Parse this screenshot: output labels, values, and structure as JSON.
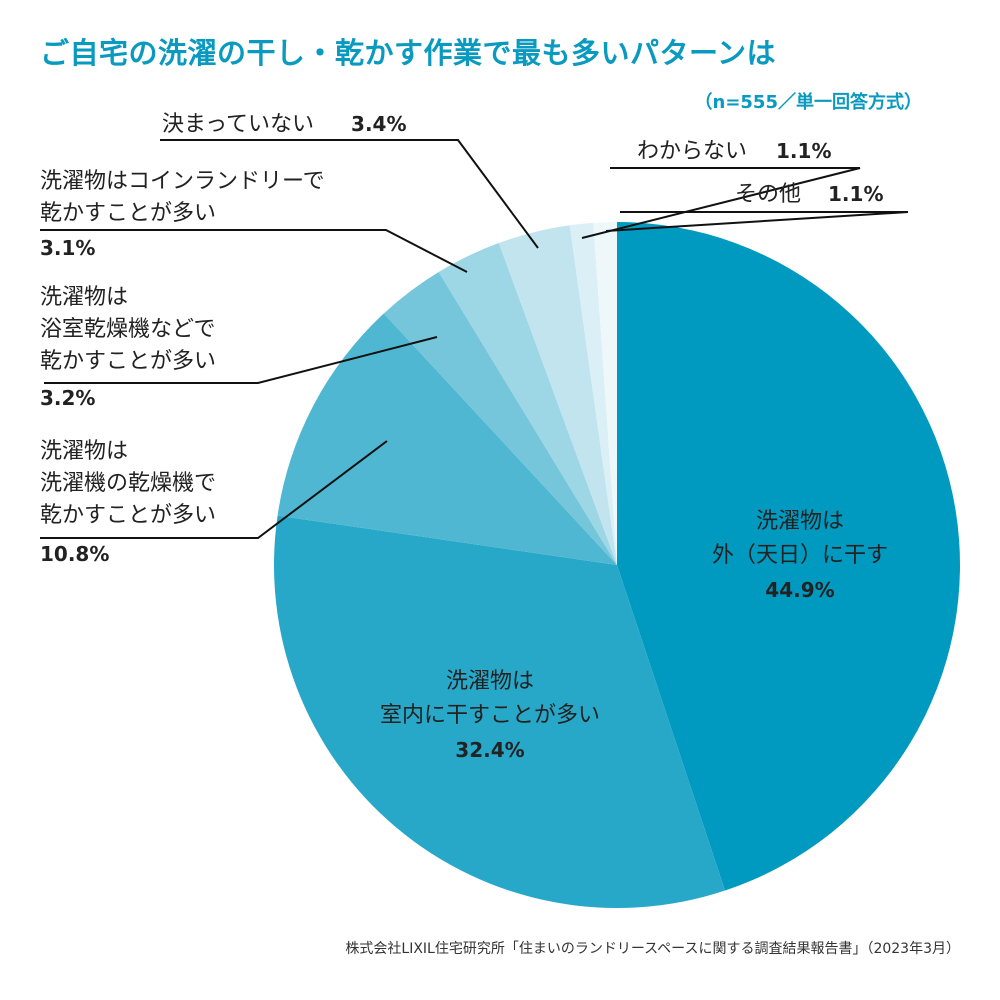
{
  "chart_data": {
    "type": "pie",
    "title": "ご自宅の洗濯の干し・乾かす作業で最も多いパターンは",
    "subtitle": "（n=555／単一回答方式）",
    "start": "12 o'clock, clockwise",
    "slices": [
      {
        "label_lines": [
          "洗濯物は",
          "外（天日）に干す"
        ],
        "value": 44.9,
        "value_label": "44.9%",
        "color": "#0099bf"
      },
      {
        "label_lines": [
          "洗濯物は",
          "室内に干すことが多い"
        ],
        "value": 32.4,
        "value_label": "32.4%",
        "color": "#28a8c8"
      },
      {
        "label_lines": [
          "洗濯物は",
          "洗濯機の乾燥機で",
          "乾かすことが多い"
        ],
        "value": 10.8,
        "value_label": "10.8%",
        "color": "#4fb7d2"
      },
      {
        "label_lines": [
          "洗濯物は",
          "浴室乾燥機などで",
          "乾かすことが多い"
        ],
        "value": 3.2,
        "value_label": "3.2%",
        "color": "#75c6db"
      },
      {
        "label_lines": [
          "洗濯物はコインランドリーで",
          "乾かすことが多い"
        ],
        "value": 3.1,
        "value_label": "3.1%",
        "color": "#9dd6e5"
      },
      {
        "label_lines": [
          "決まっていない"
        ],
        "value": 3.4,
        "value_label": "3.4%",
        "color": "#c1e4ee"
      },
      {
        "label_lines": [
          "わからない"
        ],
        "value": 1.1,
        "value_label": "1.1%",
        "color": "#daf0f6"
      },
      {
        "label_lines": [
          "その他"
        ],
        "value": 1.1,
        "value_label": "1.1%",
        "color": "#eef8fb"
      }
    ]
  },
  "source": "株式会社LIXIL住宅研究所「住まいのランドリースペースに関する調査結果報告書」（2023年3月）"
}
